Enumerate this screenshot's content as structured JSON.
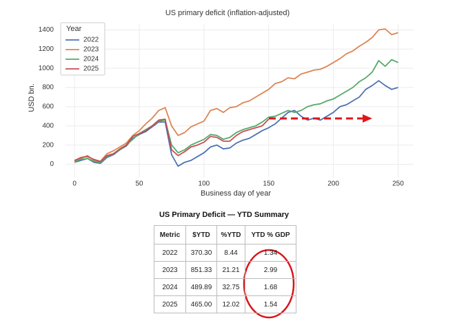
{
  "chart_data": {
    "type": "line",
    "title": "US primary deficit (inflation-adjusted)",
    "x_label": "Business day of year",
    "y_label": "USD bn.",
    "legend_title": "Year",
    "legend": "upper left",
    "grid": true,
    "xlim": [
      -7,
      262
    ],
    "ylim": [
      -140,
      1460
    ],
    "xticks": [
      0,
      50,
      100,
      150,
      200,
      250
    ],
    "yticks": [
      0,
      200,
      400,
      600,
      800,
      1000,
      1200,
      1400
    ],
    "x": [
      0,
      5,
      10,
      15,
      20,
      25,
      30,
      35,
      40,
      45,
      50,
      55,
      60,
      65,
      70,
      75,
      80,
      85,
      90,
      95,
      100,
      105,
      110,
      115,
      120,
      125,
      130,
      135,
      140,
      145,
      150,
      155,
      160,
      165,
      170,
      175,
      180,
      185,
      190,
      195,
      200,
      205,
      210,
      215,
      220,
      225,
      230,
      235,
      240,
      245,
      250
    ],
    "series": [
      {
        "name": "2022",
        "color": "#4c72b0",
        "values": [
          20,
          40,
          60,
          20,
          10,
          70,
          100,
          150,
          190,
          270,
          310,
          340,
          390,
          440,
          440,
          100,
          -20,
          20,
          40,
          80,
          120,
          180,
          200,
          160,
          170,
          220,
          250,
          270,
          310,
          350,
          380,
          420,
          480,
          540,
          560,
          500,
          460,
          480,
          460,
          500,
          540,
          600,
          620,
          660,
          700,
          780,
          820,
          870,
          820,
          780,
          800
        ]
      },
      {
        "name": "2023",
        "color": "#dd8452",
        "values": [
          20,
          60,
          90,
          40,
          30,
          110,
          140,
          180,
          220,
          300,
          350,
          420,
          480,
          560,
          590,
          400,
          300,
          330,
          390,
          420,
          450,
          560,
          580,
          540,
          590,
          600,
          640,
          660,
          700,
          740,
          780,
          840,
          860,
          900,
          890,
          940,
          960,
          980,
          990,
          1020,
          1060,
          1100,
          1150,
          1180,
          1230,
          1270,
          1320,
          1400,
          1410,
          1350,
          1370
        ]
      },
      {
        "name": "2024",
        "color": "#55a868",
        "values": [
          30,
          50,
          60,
          30,
          20,
          80,
          110,
          150,
          200,
          260,
          320,
          360,
          400,
          450,
          460,
          200,
          120,
          150,
          200,
          230,
          260,
          310,
          300,
          260,
          280,
          330,
          360,
          380,
          400,
          440,
          490,
          500,
          530,
          560,
          540,
          560,
          600,
          620,
          630,
          660,
          680,
          720,
          760,
          800,
          860,
          900,
          960,
          1080,
          1020,
          1090,
          1060
        ]
      },
      {
        "name": "2025",
        "color": "#c44e52",
        "values": [
          40,
          70,
          80,
          50,
          30,
          90,
          110,
          160,
          200,
          290,
          320,
          350,
          400,
          460,
          470,
          150,
          90,
          130,
          180,
          200,
          230,
          290,
          280,
          240,
          240,
          300,
          340,
          360,
          380,
          400,
          470,
          null,
          null,
          null,
          null,
          null,
          null,
          null,
          null,
          null,
          null,
          null,
          null,
          null,
          null,
          null,
          null,
          null,
          null,
          null,
          null
        ]
      }
    ]
  },
  "table": {
    "title": "US Primary Deficit — YTD Summary",
    "header": [
      "Metric",
      "$YTD",
      "%YTD",
      "YTD % GDP"
    ],
    "rows": [
      [
        "2022",
        "370.30",
        "8.44",
        "1.34"
      ],
      [
        "2023",
        "851.33",
        "21.21",
        "2.99"
      ],
      [
        "2024",
        "489.89",
        "32.75",
        "1.68"
      ],
      [
        "2025",
        "465.00",
        "12.02",
        "1.54"
      ]
    ]
  }
}
